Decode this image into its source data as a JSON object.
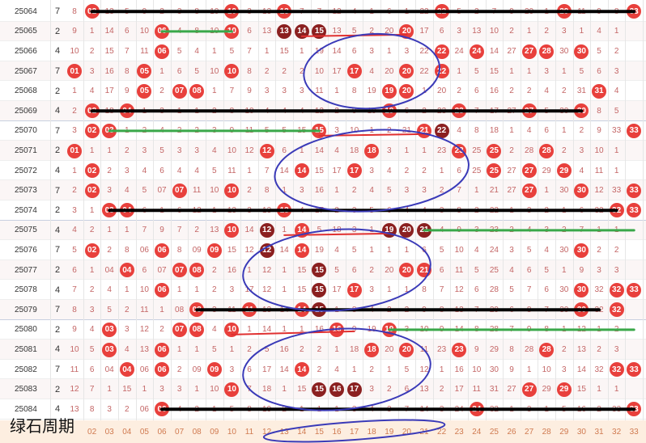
{
  "watermark": "绿石周期",
  "chart_data": {
    "type": "table",
    "footer_numbers": [
      "02",
      "03",
      "04",
      "05",
      "06",
      "07",
      "08",
      "09",
      "10",
      "11",
      "12",
      "13",
      "14",
      "15",
      "16",
      "17",
      "18",
      "19",
      "20",
      "21",
      "22",
      "23",
      "24",
      "25",
      "26",
      "27",
      "28",
      "29",
      "30",
      "31",
      "32",
      "33"
    ],
    "colors": {
      "red_ball": "#e8403c",
      "dark_ball": "#8b2020",
      "black_line": "#000000",
      "green_line": "#3aa84a",
      "red_line": "#e03030",
      "blue_ellipse": "#3a3ab8"
    },
    "rows": [
      {
        "issue": "25064",
        "sum": "7",
        "cells": [
          "8",
          "02",
          "13",
          "5",
          "9",
          "2",
          "3",
          "8",
          "10",
          "9",
          "3",
          "13",
          "4",
          "7",
          "7",
          "12",
          "4",
          "1",
          "6",
          "1",
          "22",
          "16",
          "5",
          "2",
          "7",
          "9",
          "29",
          "1",
          "8",
          "11",
          "9",
          "8"
        ],
        "balls": [
          {
            "n": "02"
          },
          {
            "n": "10"
          },
          {
            "n": "13"
          },
          {
            "n": "22"
          },
          {
            "n": "29"
          },
          {
            "n": "33"
          }
        ]
      },
      {
        "issue": "25065",
        "sum": "2",
        "cells": [
          "9",
          "1",
          "14",
          "6",
          "10",
          "06",
          "4",
          "8",
          "10",
          "4",
          "6",
          "13",
          "14",
          "15",
          "6",
          "13",
          "5",
          "2",
          "20",
          "2",
          "17",
          "6",
          "3",
          "13",
          "10",
          "2",
          "1",
          "2",
          "3",
          "1",
          "4",
          "1"
        ],
        "balls": [
          {
            "n": "06"
          },
          {
            "n": "10"
          },
          {
            "n": "13",
            "d": 1
          },
          {
            "n": "14",
            "d": 1
          },
          {
            "n": "15",
            "d": 1
          },
          {
            "n": "20"
          }
        ]
      },
      {
        "issue": "25066",
        "sum": "4",
        "cells": [
          "10",
          "2",
          "15",
          "7",
          "11",
          "06",
          "5",
          "4",
          "1",
          "5",
          "7",
          "1",
          "15",
          "1",
          "19",
          "14",
          "6",
          "3",
          "1",
          "3",
          "22",
          "18",
          "24",
          "4",
          "14",
          "27",
          "28",
          "2",
          "30",
          "4",
          "5",
          "2"
        ],
        "balls": [
          {
            "n": "06"
          },
          {
            "n": "22"
          },
          {
            "n": "24"
          },
          {
            "n": "27"
          },
          {
            "n": "28"
          },
          {
            "n": "30"
          }
        ]
      },
      {
        "issue": "25067",
        "sum": "7",
        "cells": [
          "01",
          "3",
          "16",
          "8",
          "05",
          "1",
          "6",
          "5",
          "10",
          "6",
          "8",
          "2",
          "2",
          "2",
          "10",
          "17",
          "7",
          "4",
          "20",
          "4",
          "22",
          "19",
          "1",
          "5",
          "15",
          "1",
          "1",
          "3",
          "1",
          "5",
          "6",
          "3"
        ],
        "balls": [
          {
            "n": "01"
          },
          {
            "n": "05"
          },
          {
            "n": "10"
          },
          {
            "n": "17"
          },
          {
            "n": "20"
          },
          {
            "n": "22"
          }
        ]
      },
      {
        "issue": "25068",
        "sum": "2",
        "cells": [
          "1",
          "4",
          "17",
          "9",
          "05",
          "2",
          "07",
          "08",
          "1",
          "7",
          "9",
          "3",
          "3",
          "3",
          "11",
          "1",
          "8",
          "19",
          "20",
          "5",
          "1",
          "20",
          "2",
          "6",
          "16",
          "2",
          "2",
          "4",
          "2",
          "31",
          "7",
          "4"
        ],
        "balls": [
          {
            "n": "05"
          },
          {
            "n": "07"
          },
          {
            "n": "08"
          },
          {
            "n": "19"
          },
          {
            "n": "20"
          },
          {
            "n": "31"
          }
        ]
      },
      {
        "issue": "25069",
        "sum": "4",
        "cells": [
          "2",
          "02",
          "18",
          "04",
          "1",
          "3",
          "1",
          "1",
          "2",
          "8",
          "10",
          "4",
          "4",
          "4",
          "12",
          "2",
          "9",
          "19",
          "1",
          "6",
          "2",
          "23",
          "3",
          "7",
          "17",
          "27",
          "3",
          "5",
          "30",
          "1",
          "8",
          "5"
        ],
        "balls": [
          {
            "n": "02"
          },
          {
            "n": "04"
          },
          {
            "n": "19"
          },
          {
            "n": "23"
          },
          {
            "n": "27"
          },
          {
            "n": "30"
          }
        ]
      },
      {
        "issue": "25070",
        "sum": "7",
        "cells": [
          "3",
          "02",
          "03",
          "1",
          "2",
          "4",
          "2",
          "2",
          "3",
          "9",
          "11",
          "5",
          "5",
          "15",
          "13",
          "3",
          "10",
          "1",
          "2",
          "21",
          "22",
          "1",
          "4",
          "8",
          "18",
          "1",
          "4",
          "6",
          "1",
          "2",
          "9",
          "33"
        ],
        "balls": [
          {
            "n": "02"
          },
          {
            "n": "03"
          },
          {
            "n": "15"
          },
          {
            "n": "21"
          },
          {
            "n": "22",
            "d": 1
          },
          {
            "n": "33"
          }
        ]
      },
      {
        "issue": "25071",
        "sum": "2",
        "cells": [
          "01",
          "1",
          "1",
          "2",
          "3",
          "5",
          "3",
          "3",
          "4",
          "10",
          "12",
          "6",
          "6",
          "1",
          "14",
          "4",
          "18",
          "2",
          "3",
          "1",
          "1",
          "23",
          "5",
          "25",
          "19",
          "2",
          "28",
          "7",
          "2",
          "3",
          "10",
          "1"
        ],
        "balls": [
          {
            "n": "01"
          },
          {
            "n": "12"
          },
          {
            "n": "18"
          },
          {
            "n": "23"
          },
          {
            "n": "25"
          },
          {
            "n": "28"
          }
        ]
      },
      {
        "issue": "25072",
        "sum": "4",
        "cells": [
          "1",
          "02",
          "2",
          "3",
          "4",
          "6",
          "4",
          "4",
          "5",
          "11",
          "1",
          "7",
          "14",
          "2",
          "15",
          "17",
          "1",
          "3",
          "4",
          "2",
          "2",
          "1",
          "6",
          "25",
          "20",
          "27",
          "1",
          "29",
          "3",
          "4",
          "11",
          "1"
        ],
        "balls": [
          {
            "n": "02"
          },
          {
            "n": "14"
          },
          {
            "n": "17"
          },
          {
            "n": "25"
          },
          {
            "n": "27"
          },
          {
            "n": "29"
          }
        ]
      },
      {
        "issue": "25073",
        "sum": "7",
        "cells": [
          "2",
          "02",
          "3",
          "4",
          "5",
          "07",
          "5",
          "11",
          "10",
          "12",
          "2",
          "8",
          "1",
          "3",
          "16",
          "1",
          "2",
          "4",
          "5",
          "3",
          "3",
          "2",
          "7",
          "1",
          "21",
          "27",
          "2",
          "1",
          "30",
          "5",
          "12",
          "33"
        ],
        "balls": [
          {
            "n": "02"
          },
          {
            "n": "07"
          },
          {
            "n": "10"
          },
          {
            "n": "27"
          },
          {
            "n": "30"
          },
          {
            "n": "33"
          }
        ]
      },
      {
        "issue": "25074",
        "sum": "2",
        "cells": [
          "3",
          "1",
          "03",
          "04",
          "6",
          "1",
          "6",
          "12",
          "1",
          "13",
          "3",
          "13",
          "2",
          "4",
          "17",
          "2",
          "3",
          "5",
          "6",
          "4",
          "4",
          "3",
          "8",
          "2",
          "22",
          "1",
          "3",
          "2",
          "1",
          "6",
          "32",
          "33"
        ],
        "balls": [
          {
            "n": "03"
          },
          {
            "n": "04"
          },
          {
            "n": "13"
          },
          {
            "n": "32"
          },
          {
            "n": "33"
          }
        ]
      },
      {
        "issue": "25075",
        "sum": "4",
        "cells": [
          "4",
          "2",
          "1",
          "1",
          "7",
          "9",
          "7",
          "2",
          "13",
          "10",
          "14",
          "12",
          "1",
          "14",
          "5",
          "18",
          "3",
          "1",
          "19",
          "20",
          "21",
          "4",
          "9",
          "3",
          "23",
          "2",
          "4",
          "3",
          "2",
          "7",
          "1",
          "1"
        ],
        "balls": [
          {
            "n": "10"
          },
          {
            "n": "12",
            "d": 1
          },
          {
            "n": "14"
          },
          {
            "n": "19",
            "d": 1
          },
          {
            "n": "20",
            "d": 1
          },
          {
            "n": "21",
            "d": 1
          }
        ]
      },
      {
        "issue": "25076",
        "sum": "7",
        "cells": [
          "5",
          "02",
          "2",
          "8",
          "06",
          "3",
          "8",
          "09",
          "1",
          "15",
          "12",
          "11",
          "14",
          "6",
          "19",
          "4",
          "5",
          "1",
          "1",
          "1",
          "6",
          "5",
          "10",
          "4",
          "24",
          "3",
          "5",
          "4",
          "30",
          "8",
          "2",
          "2"
        ],
        "balls": [
          {
            "n": "02"
          },
          {
            "n": "06"
          },
          {
            "n": "09"
          },
          {
            "n": "12",
            "d": 1
          },
          {
            "n": "14"
          },
          {
            "n": "30"
          }
        ]
      },
      {
        "issue": "25077",
        "sum": "2",
        "cells": [
          "6",
          "1",
          "04",
          "4",
          "6",
          "07",
          "08",
          "1",
          "2",
          "16",
          "1",
          "12",
          "1",
          "15",
          "20",
          "5",
          "6",
          "2",
          "20",
          "21",
          "7",
          "6",
          "11",
          "5",
          "25",
          "4",
          "6",
          "5",
          "1",
          "9",
          "3",
          "3"
        ],
        "balls": [
          {
            "n": "04"
          },
          {
            "n": "07"
          },
          {
            "n": "08"
          },
          {
            "n": "15",
            "d": 1
          },
          {
            "n": "20"
          },
          {
            "n": "21"
          }
        ]
      },
      {
        "issue": "25078",
        "sum": "4",
        "cells": [
          "7",
          "2",
          "4",
          "1",
          "10",
          "06",
          "1",
          "1",
          "2",
          "3",
          "17",
          "12",
          "1",
          "15",
          "21",
          "17",
          "7",
          "3",
          "1",
          "1",
          "8",
          "7",
          "12",
          "6",
          "28",
          "5",
          "7",
          "6",
          "30",
          "10",
          "32",
          "33"
        ],
        "balls": [
          {
            "n": "06"
          },
          {
            "n": "15",
            "d": 1
          },
          {
            "n": "17"
          },
          {
            "n": "30"
          },
          {
            "n": "32"
          },
          {
            "n": "33"
          }
        ]
      },
      {
        "issue": "25079",
        "sum": "7",
        "cells": [
          "8",
          "3",
          "5",
          "2",
          "11",
          "1",
          "08",
          "2",
          "3",
          "11",
          "12",
          "13",
          "14",
          "15",
          "22",
          "1",
          "8",
          "4",
          "2",
          "2",
          "9",
          "8",
          "13",
          "7",
          "29",
          "6",
          "8",
          "7",
          "30",
          "11",
          "32",
          "2"
        ],
        "balls": [
          {
            "n": "08"
          },
          {
            "n": "11"
          },
          {
            "n": "14"
          },
          {
            "n": "15",
            "d": 1
          },
          {
            "n": "30"
          },
          {
            "n": "32"
          }
        ]
      },
      {
        "issue": "25080",
        "sum": "2",
        "cells": [
          "9",
          "4",
          "03",
          "3",
          "12",
          "2",
          "07",
          "08",
          "4",
          "10",
          "1",
          "14",
          "1",
          "1",
          "16",
          "2",
          "9",
          "19",
          "3",
          "3",
          "10",
          "9",
          "14",
          "8",
          "28",
          "7",
          "9",
          "8",
          "1",
          "12",
          "1",
          "2"
        ],
        "balls": [
          {
            "n": "03"
          },
          {
            "n": "07"
          },
          {
            "n": "08"
          },
          {
            "n": "10"
          },
          {
            "n": "16"
          },
          {
            "n": "19"
          }
        ]
      },
      {
        "issue": "25081",
        "sum": "4",
        "cells": [
          "10",
          "5",
          "03",
          "4",
          "13",
          "06",
          "1",
          "1",
          "5",
          "1",
          "2",
          "5",
          "16",
          "2",
          "2",
          "1",
          "18",
          "1",
          "20",
          "4",
          "11",
          "23",
          "15",
          "9",
          "29",
          "8",
          "28",
          "9",
          "2",
          "13",
          "2",
          "3"
        ],
        "balls": [
          {
            "n": "03"
          },
          {
            "n": "06"
          },
          {
            "n": "18"
          },
          {
            "n": "20"
          },
          {
            "n": "23"
          },
          {
            "n": "28"
          }
        ]
      },
      {
        "issue": "25082",
        "sum": "7",
        "cells": [
          "11",
          "6",
          "04",
          "14",
          "06",
          "2",
          "2",
          "09",
          "6",
          "3",
          "6",
          "17",
          "14",
          "3",
          "2",
          "4",
          "1",
          "2",
          "1",
          "5",
          "12",
          "1",
          "16",
          "10",
          "30",
          "9",
          "1",
          "10",
          "3",
          "14",
          "32",
          "33"
        ],
        "balls": [
          {
            "n": "04"
          },
          {
            "n": "06"
          },
          {
            "n": "09"
          },
          {
            "n": "14"
          },
          {
            "n": "32"
          },
          {
            "n": "33"
          }
        ]
      },
      {
        "issue": "25083",
        "sum": "2",
        "cells": [
          "12",
          "7",
          "1",
          "15",
          "1",
          "3",
          "3",
          "1",
          "10",
          "4",
          "7",
          "18",
          "1",
          "15",
          "16",
          "17",
          "2",
          "3",
          "2",
          "6",
          "13",
          "2",
          "17",
          "11",
          "31",
          "27",
          "2",
          "29",
          "4",
          "15",
          "1",
          "1"
        ],
        "balls": [
          {
            "n": "10"
          },
          {
            "n": "15",
            "d": 1
          },
          {
            "n": "16",
            "d": 1
          },
          {
            "n": "17",
            "d": 1
          },
          {
            "n": "27"
          },
          {
            "n": "29"
          }
        ]
      },
      {
        "issue": "25084",
        "sum": "4",
        "cells": [
          "13",
          "8",
          "3",
          "2",
          "06",
          "4",
          "4",
          "2",
          "1",
          "5",
          "8",
          "19",
          "2",
          "1",
          "1",
          "1",
          "3",
          "4",
          "3",
          "7",
          "14",
          "3",
          "24",
          "12",
          "32",
          "1",
          "3",
          "1",
          "5",
          "16",
          "2",
          "33"
        ],
        "balls": [
          {
            "n": "06"
          },
          {
            "n": "24"
          },
          {
            "n": "33"
          }
        ]
      }
    ]
  }
}
